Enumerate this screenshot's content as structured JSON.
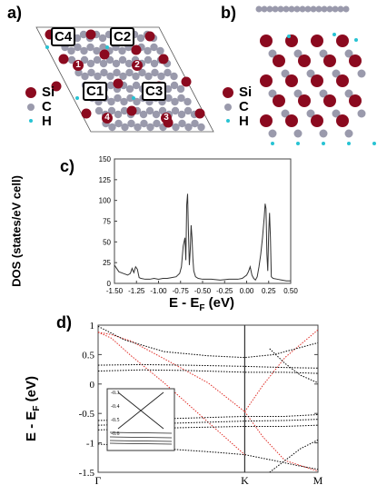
{
  "panels": {
    "a": {
      "letter": "a)",
      "site_labels": [
        "C4",
        "C2",
        "C1",
        "C3"
      ],
      "atom_numbers": [
        "1",
        "2",
        "4",
        "3"
      ],
      "legend": [
        {
          "label": "Si",
          "color": "#8b0a1f"
        },
        {
          "label": "C",
          "color": "#9a9aac"
        },
        {
          "label": "H",
          "color": "#27c3d3"
        }
      ]
    },
    "b": {
      "letter": "b)",
      "legend": [
        {
          "label": "Si",
          "color": "#8b0a1f"
        },
        {
          "label": "C",
          "color": "#9a9aac"
        },
        {
          "label": "H",
          "color": "#27c3d3"
        }
      ]
    },
    "c": {
      "letter": "c)"
    },
    "d": {
      "letter": "d)"
    }
  },
  "chart_data": [
    {
      "type": "line",
      "panel": "c",
      "xlabel": "E - E_F (eV)",
      "ylabel": "DOS (states/eV cell)",
      "xlim": [
        -1.5,
        0.5
      ],
      "ylim": [
        0,
        150
      ],
      "xticks": [
        "-1.50",
        "-1.25",
        "-1.00",
        "-0.75",
        "-0.50",
        "-0.25",
        "0.00",
        "0.25",
        "0.50"
      ],
      "yticks": [
        "0",
        "25",
        "50",
        "75",
        "100",
        "125",
        "150"
      ],
      "series": [
        {
          "x": [
            -1.5,
            -1.45,
            -1.4,
            -1.35,
            -1.32,
            -1.3,
            -1.28,
            -1.26,
            -1.24,
            -1.22,
            -1.2,
            -1.15,
            -1.1,
            -1.05,
            -1.0,
            -0.95,
            -0.9,
            -0.85,
            -0.8,
            -0.76,
            -0.74,
            -0.72,
            -0.7,
            -0.69,
            -0.68,
            -0.67,
            -0.66,
            -0.65,
            -0.64,
            -0.63,
            -0.62,
            -0.61,
            -0.6,
            -0.58,
            -0.55,
            -0.5,
            -0.4,
            -0.3,
            -0.2,
            -0.1,
            -0.05,
            0.0,
            0.02,
            0.04,
            0.06,
            0.08,
            0.1,
            0.12,
            0.14,
            0.16,
            0.18,
            0.2,
            0.21,
            0.22,
            0.23,
            0.24,
            0.25,
            0.26,
            0.27,
            0.28,
            0.3,
            0.35,
            0.4,
            0.45,
            0.5
          ],
          "y": [
            22,
            14,
            12,
            10,
            12,
            18,
            13,
            20,
            17,
            7,
            6,
            5,
            5,
            6,
            5,
            6,
            6,
            7,
            8,
            12,
            20,
            45,
            55,
            28,
            95,
            108,
            60,
            22,
            40,
            70,
            55,
            30,
            15,
            8,
            6,
            5,
            5,
            4,
            5,
            5,
            6,
            10,
            14,
            20,
            10,
            6,
            4,
            8,
            20,
            35,
            55,
            80,
            96,
            90,
            35,
            15,
            60,
            85,
            55,
            8,
            6,
            5,
            4,
            3,
            3
          ]
        }
      ]
    },
    {
      "type": "line",
      "panel": "d",
      "xlabel": "",
      "ylabel": "E - E_F (eV)",
      "ylim": [
        -1.5,
        1
      ],
      "xticks": [
        "Γ",
        "K",
        "M"
      ],
      "yticks": [
        "-1.5",
        "-1",
        "-0.5",
        "0",
        "0.5",
        "1"
      ],
      "inset": {
        "yticks": [
          "-0.3",
          "-0.4",
          "-0.5",
          "-0.6"
        ]
      },
      "series": [
        {
          "color": "#e0302a",
          "x": [
            0,
            0.06,
            0.15,
            0.3,
            0.5,
            0.667
          ],
          "y": [
            0.88,
            0.84,
            0.73,
            0.43,
            0.02,
            -0.47
          ]
        },
        {
          "color": "#e0302a",
          "x": [
            0,
            0.06,
            0.15,
            0.3,
            0.45,
            0.6,
            0.667
          ],
          "y": [
            0.88,
            0.78,
            0.48,
            0.02,
            -0.48,
            -0.98,
            -1.2
          ]
        },
        {
          "color": "#e0302a",
          "x": [
            0.667,
            0.75,
            0.85,
            1.0
          ],
          "y": [
            -0.47,
            -0.02,
            0.45,
            0.92
          ]
        },
        {
          "color": "#e0302a",
          "x": [
            0.667,
            0.75,
            0.85,
            1.0
          ],
          "y": [
            -0.47,
            -0.9,
            -1.3,
            -1.48
          ]
        },
        {
          "color": "#000000",
          "x": [
            0,
            0.2,
            0.4,
            0.667,
            0.85,
            1.0
          ],
          "y": [
            0.32,
            0.33,
            0.32,
            0.3,
            0.28,
            0.27
          ]
        },
        {
          "color": "#000000",
          "x": [
            0,
            0.2,
            0.4,
            0.667,
            0.85,
            1.0
          ],
          "y": [
            0.22,
            0.24,
            0.23,
            0.2,
            0.2,
            0.18
          ]
        },
        {
          "color": "#000000",
          "x": [
            0,
            0.2,
            0.4,
            0.667,
            0.85,
            1.0
          ],
          "y": [
            -0.62,
            -0.6,
            -0.58,
            -0.55,
            -0.55,
            -0.52
          ]
        },
        {
          "color": "#000000",
          "x": [
            0,
            0.2,
            0.4,
            0.667,
            0.85,
            1.0
          ],
          "y": [
            -0.7,
            -0.68,
            -0.66,
            -0.63,
            -0.62,
            -0.6
          ]
        },
        {
          "color": "#000000",
          "x": [
            0,
            0.2,
            0.4,
            0.667,
            0.85,
            1.0
          ],
          "y": [
            -0.78,
            -0.76,
            -0.74,
            -0.72,
            -0.72,
            -0.7
          ]
        },
        {
          "color": "#000000",
          "x": [
            0,
            0.12,
            0.3,
            0.5,
            0.667,
            0.8,
            0.9,
            1.0
          ],
          "y": [
            0.98,
            0.75,
            0.55,
            0.48,
            0.45,
            0.5,
            0.6,
            0.7
          ]
        },
        {
          "color": "#000000",
          "x": [
            0,
            0.12,
            0.3,
            0.5,
            0.667,
            0.8,
            0.9,
            1.0
          ],
          "y": [
            -1.02,
            -1.05,
            -1.1,
            -1.15,
            -1.2,
            -1.3,
            -1.38,
            -1.45
          ]
        },
        {
          "color": "#000000",
          "x": [
            0.78,
            0.85,
            0.92,
            1.0
          ],
          "y": [
            0.6,
            0.35,
            0.15,
            0.02
          ]
        },
        {
          "color": "#000000",
          "x": [
            0.78,
            0.85,
            0.92,
            1.0
          ],
          "y": [
            -1.5,
            -1.3,
            -1.1,
            -0.95
          ]
        }
      ]
    }
  ]
}
